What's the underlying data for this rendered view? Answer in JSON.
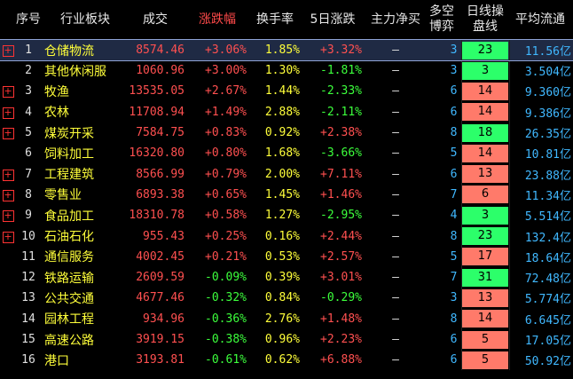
{
  "headers": {
    "idx": "序号",
    "name": "行业板块",
    "vol": "成交",
    "pct": "涨跌幅",
    "turn": "换手率",
    "p5": "5日涨跌",
    "net": "主力净买",
    "ls1": "多空",
    "ls2": "博弈",
    "day1": "日线操",
    "day2": "盘线",
    "avg": "平均流通"
  },
  "colors": {
    "up": "#ff5050",
    "down": "#3cff3c",
    "day_green": "#2cff6a",
    "day_red": "#ff7a6a",
    "name": "#ffff3a",
    "blue": "#40b8ff"
  },
  "rows": [
    {
      "exp": "+",
      "idx": "1",
      "name": "仓储物流",
      "vol": "8574.46",
      "pct": "+3.06%",
      "pct_dir": "up",
      "turn": "1.85%",
      "p5": "+3.32%",
      "p5_dir": "up",
      "net": "—",
      "ls": "3",
      "day": "23",
      "day_color": "green",
      "avg": "11.56亿",
      "selected": true
    },
    {
      "exp": "",
      "idx": "2",
      "name": "其他休闲服",
      "vol": "1060.96",
      "pct": "+3.00%",
      "pct_dir": "up",
      "turn": "1.30%",
      "p5": "-1.81%",
      "p5_dir": "dn",
      "net": "—",
      "ls": "3",
      "day": "3",
      "day_color": "green",
      "avg": "3.504亿",
      "selected": false
    },
    {
      "exp": "+",
      "idx": "3",
      "name": "牧渔",
      "vol": "13535.05",
      "pct": "+2.67%",
      "pct_dir": "up",
      "turn": "1.44%",
      "p5": "-2.33%",
      "p5_dir": "dn",
      "net": "—",
      "ls": "6",
      "day": "14",
      "day_color": "red",
      "avg": "9.360亿",
      "selected": false
    },
    {
      "exp": "+",
      "idx": "4",
      "name": "农林",
      "vol": "11708.94",
      "pct": "+1.49%",
      "pct_dir": "up",
      "turn": "2.88%",
      "p5": "-2.11%",
      "p5_dir": "dn",
      "net": "—",
      "ls": "6",
      "day": "14",
      "day_color": "red",
      "avg": "9.386亿",
      "selected": false
    },
    {
      "exp": "+",
      "idx": "5",
      "name": "煤炭开采",
      "vol": "7584.75",
      "pct": "+0.83%",
      "pct_dir": "up",
      "turn": "0.92%",
      "p5": "+2.38%",
      "p5_dir": "up",
      "net": "—",
      "ls": "8",
      "day": "18",
      "day_color": "green",
      "avg": "26.35亿",
      "selected": false
    },
    {
      "exp": "",
      "idx": "6",
      "name": "饲料加工",
      "vol": "16320.80",
      "pct": "+0.80%",
      "pct_dir": "up",
      "turn": "1.68%",
      "p5": "-3.66%",
      "p5_dir": "dn",
      "net": "—",
      "ls": "5",
      "day": "14",
      "day_color": "red",
      "avg": "10.81亿",
      "selected": false
    },
    {
      "exp": "+",
      "idx": "7",
      "name": "工程建筑",
      "vol": "8566.99",
      "pct": "+0.79%",
      "pct_dir": "up",
      "turn": "2.00%",
      "p5": "+7.11%",
      "p5_dir": "up",
      "net": "—",
      "ls": "6",
      "day": "13",
      "day_color": "red",
      "avg": "23.88亿",
      "selected": false
    },
    {
      "exp": "+",
      "idx": "8",
      "name": "零售业",
      "vol": "6893.38",
      "pct": "+0.65%",
      "pct_dir": "up",
      "turn": "1.45%",
      "p5": "+1.46%",
      "p5_dir": "up",
      "net": "—",
      "ls": "7",
      "day": "6",
      "day_color": "red",
      "avg": "11.34亿",
      "selected": false
    },
    {
      "exp": "+",
      "idx": "9",
      "name": "食品加工",
      "vol": "18310.78",
      "pct": "+0.58%",
      "pct_dir": "up",
      "turn": "1.27%",
      "p5": "-2.95%",
      "p5_dir": "dn",
      "net": "—",
      "ls": "4",
      "day": "3",
      "day_color": "green",
      "avg": "5.514亿",
      "selected": false
    },
    {
      "exp": "+",
      "idx": "10",
      "name": "石油石化",
      "vol": "955.43",
      "pct": "+0.25%",
      "pct_dir": "up",
      "turn": "0.16%",
      "p5": "+2.44%",
      "p5_dir": "up",
      "net": "—",
      "ls": "8",
      "day": "23",
      "day_color": "green",
      "avg": "132.4亿",
      "selected": false
    },
    {
      "exp": "",
      "idx": "11",
      "name": "通信服务",
      "vol": "4002.45",
      "pct": "+0.21%",
      "pct_dir": "up",
      "turn": "0.53%",
      "p5": "+2.57%",
      "p5_dir": "up",
      "net": "—",
      "ls": "5",
      "day": "17",
      "day_color": "red",
      "avg": "18.64亿",
      "selected": false
    },
    {
      "exp": "",
      "idx": "12",
      "name": "铁路运输",
      "vol": "2609.59",
      "pct": "-0.09%",
      "pct_dir": "dn",
      "turn": "0.39%",
      "p5": "+3.01%",
      "p5_dir": "up",
      "net": "—",
      "ls": "7",
      "day": "31",
      "day_color": "green",
      "avg": "72.48亿",
      "selected": false
    },
    {
      "exp": "",
      "idx": "13",
      "name": "公共交通",
      "vol": "4677.46",
      "pct": "-0.32%",
      "pct_dir": "dn",
      "turn": "0.84%",
      "p5": "-0.29%",
      "p5_dir": "dn",
      "net": "—",
      "ls": "3",
      "day": "13",
      "day_color": "red",
      "avg": "5.774亿",
      "selected": false
    },
    {
      "exp": "",
      "idx": "14",
      "name": "园林工程",
      "vol": "934.96",
      "pct": "-0.36%",
      "pct_dir": "dn",
      "turn": "2.76%",
      "p5": "+1.48%",
      "p5_dir": "up",
      "net": "—",
      "ls": "8",
      "day": "14",
      "day_color": "red",
      "avg": "6.645亿",
      "selected": false
    },
    {
      "exp": "",
      "idx": "15",
      "name": "高速公路",
      "vol": "3919.15",
      "pct": "-0.38%",
      "pct_dir": "dn",
      "turn": "0.96%",
      "p5": "+2.23%",
      "p5_dir": "up",
      "net": "—",
      "ls": "6",
      "day": "5",
      "day_color": "red",
      "avg": "17.05亿",
      "selected": false
    },
    {
      "exp": "",
      "idx": "16",
      "name": "港口",
      "vol": "3193.81",
      "pct": "-0.61%",
      "pct_dir": "dn",
      "turn": "0.62%",
      "p5": "+6.88%",
      "p5_dir": "up",
      "net": "—",
      "ls": "6",
      "day": "5",
      "day_color": "red",
      "avg": "50.92亿",
      "selected": false
    }
  ]
}
